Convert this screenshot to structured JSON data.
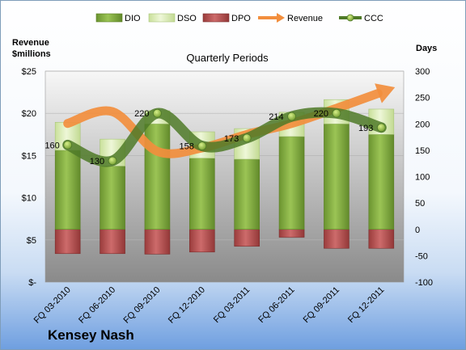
{
  "chart_data": {
    "type": "bar",
    "title": "Quarterly Periods",
    "company": "Kensey Nash",
    "left_axis_label": [
      "Revenue",
      "$millions"
    ],
    "right_axis_label": "Days",
    "categories": [
      "FQ 03-2010",
      "FQ 06-2010",
      "FQ 09-2010",
      "FQ 12-2010",
      "FQ 03-2011",
      "FQ 06-2011",
      "FQ 09-2011",
      "FQ 12-2011"
    ],
    "left_ylim": [
      0,
      25
    ],
    "left_ticks": [
      "$-",
      "$5",
      "$10",
      "$15",
      "$20",
      "$25"
    ],
    "left_tick_values": [
      0,
      5,
      10,
      15,
      20,
      25
    ],
    "right_ylim": [
      -100,
      300
    ],
    "right_ticks": [
      "-100",
      "-50",
      "0",
      "50",
      "100",
      "150",
      "200",
      "250",
      "300"
    ],
    "right_tick_values": [
      -100,
      -50,
      0,
      50,
      100,
      150,
      200,
      250,
      300
    ],
    "grid": true,
    "legend_position": "top",
    "series": [
      {
        "name": "DIO",
        "axis": "right",
        "kind": "stacked-bar",
        "color": "#7aa437",
        "values": [
          150,
          120,
          200,
          135,
          133,
          176,
          200,
          180
        ]
      },
      {
        "name": "DSO",
        "axis": "right",
        "kind": "stacked-bar",
        "color": "#d7eab0",
        "values": [
          53,
          51,
          25,
          50,
          58,
          46,
          46,
          48
        ]
      },
      {
        "name": "DPO",
        "axis": "right",
        "kind": "bar-negative",
        "color": "#b24e4e",
        "values": [
          -46,
          -46,
          -47,
          -43,
          -32,
          -15,
          -36,
          -36
        ]
      },
      {
        "name": "Revenue",
        "axis": "left",
        "kind": "arrow-line",
        "color": "#f28e3d",
        "values": [
          18.8,
          20.2,
          15.5,
          15.9,
          17.5,
          18.8,
          20.6,
          22.5
        ]
      },
      {
        "name": "CCC",
        "axis": "right",
        "kind": "line-markers",
        "color": "#4f7a28",
        "values": [
          160,
          130,
          220,
          158,
          173,
          214,
          220,
          193
        ]
      }
    ],
    "data_labels": [
      "160",
      "130",
      "220",
      "158",
      "173",
      "214",
      "220",
      "193"
    ]
  }
}
